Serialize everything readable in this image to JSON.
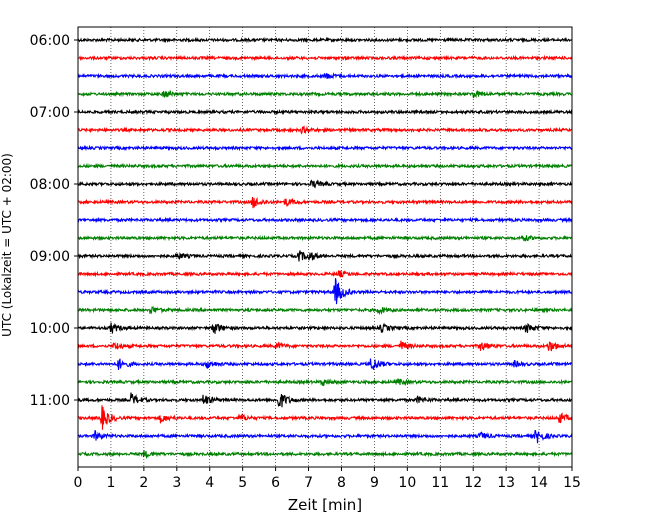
{
  "chart_data": {
    "type": "line",
    "title": "",
    "xlabel": "Zeit  [min]",
    "ylabel": "UTC (Lokalzeit = UTC + 02:00)",
    "xlim": [
      0,
      15
    ],
    "x_ticks": [
      "0",
      "1",
      "2",
      "3",
      "4",
      "5",
      "6",
      "7",
      "8",
      "9",
      "10",
      "11",
      "12",
      "13",
      "14",
      "15"
    ],
    "y_ticks": [
      "06:00",
      "07:00",
      "08:00",
      "09:00",
      "10:00",
      "11:00"
    ],
    "grid": "vertical dotted at each minute",
    "trace_interval_min": 15,
    "trace_colors": [
      "#000000",
      "#ff0000",
      "#0000ff",
      "#008000"
    ],
    "traces": [
      {
        "start": "06:00",
        "events": []
      },
      {
        "start": "06:15",
        "events": []
      },
      {
        "start": "06:30",
        "events": [
          {
            "t": 7.5,
            "amp": 0.5
          }
        ]
      },
      {
        "start": "06:45",
        "events": [
          {
            "t": 2.6,
            "amp": 0.6
          },
          {
            "t": 12.0,
            "amp": 0.6
          }
        ]
      },
      {
        "start": "07:00",
        "events": []
      },
      {
        "start": "07:15",
        "events": [
          {
            "t": 6.8,
            "amp": 0.5
          }
        ]
      },
      {
        "start": "07:30",
        "events": []
      },
      {
        "start": "07:45",
        "events": []
      },
      {
        "start": "08:00",
        "events": [
          {
            "t": 7.1,
            "amp": 0.6
          }
        ]
      },
      {
        "start": "08:15",
        "events": [
          {
            "t": 5.3,
            "amp": 1.0
          },
          {
            "t": 6.3,
            "amp": 0.7
          }
        ]
      },
      {
        "start": "08:30",
        "events": []
      },
      {
        "start": "08:45",
        "events": [
          {
            "t": 13.5,
            "amp": 0.5
          }
        ]
      },
      {
        "start": "09:00",
        "events": [
          {
            "t": 3.0,
            "amp": 0.5
          },
          {
            "t": 6.7,
            "amp": 0.9
          },
          {
            "t": 7.0,
            "amp": 0.7
          }
        ]
      },
      {
        "start": "09:15",
        "events": [
          {
            "t": 7.9,
            "amp": 0.5
          }
        ]
      },
      {
        "start": "09:30",
        "events": [
          {
            "t": 7.8,
            "amp": 2.4
          }
        ]
      },
      {
        "start": "09:45",
        "events": [
          {
            "t": 2.2,
            "amp": 0.6
          },
          {
            "t": 9.1,
            "amp": 0.6
          }
        ]
      },
      {
        "start": "10:00",
        "events": [
          {
            "t": 1.0,
            "amp": 0.8
          },
          {
            "t": 4.1,
            "amp": 1.1
          },
          {
            "t": 9.2,
            "amp": 0.7
          },
          {
            "t": 13.6,
            "amp": 0.8
          }
        ]
      },
      {
        "start": "10:15",
        "events": [
          {
            "t": 1.1,
            "amp": 0.6
          },
          {
            "t": 6.0,
            "amp": 0.5
          },
          {
            "t": 9.8,
            "amp": 0.8
          },
          {
            "t": 12.2,
            "amp": 0.9
          },
          {
            "t": 14.3,
            "amp": 1.0
          }
        ]
      },
      {
        "start": "10:30",
        "events": [
          {
            "t": 1.2,
            "amp": 1.0
          },
          {
            "t": 3.9,
            "amp": 0.7
          },
          {
            "t": 8.9,
            "amp": 1.3
          },
          {
            "t": 13.2,
            "amp": 0.5
          }
        ]
      },
      {
        "start": "10:45",
        "events": [
          {
            "t": 7.4,
            "amp": 0.6
          },
          {
            "t": 9.7,
            "amp": 0.5
          }
        ]
      },
      {
        "start": "11:00",
        "events": [
          {
            "t": 1.6,
            "amp": 1.1
          },
          {
            "t": 3.8,
            "amp": 1.0
          },
          {
            "t": 6.1,
            "amp": 1.6
          },
          {
            "t": 10.3,
            "amp": 0.5
          }
        ]
      },
      {
        "start": "11:15",
        "events": [
          {
            "t": 0.7,
            "amp": 2.2
          },
          {
            "t": 2.5,
            "amp": 0.7
          },
          {
            "t": 4.9,
            "amp": 0.6
          },
          {
            "t": 14.6,
            "amp": 0.9
          }
        ]
      },
      {
        "start": "11:30",
        "events": [
          {
            "t": 0.5,
            "amp": 0.8
          },
          {
            "t": 12.2,
            "amp": 0.6
          },
          {
            "t": 13.9,
            "amp": 1.3
          }
        ]
      },
      {
        "start": "11:45",
        "events": [
          {
            "t": 2.0,
            "amp": 0.5
          }
        ]
      }
    ]
  }
}
